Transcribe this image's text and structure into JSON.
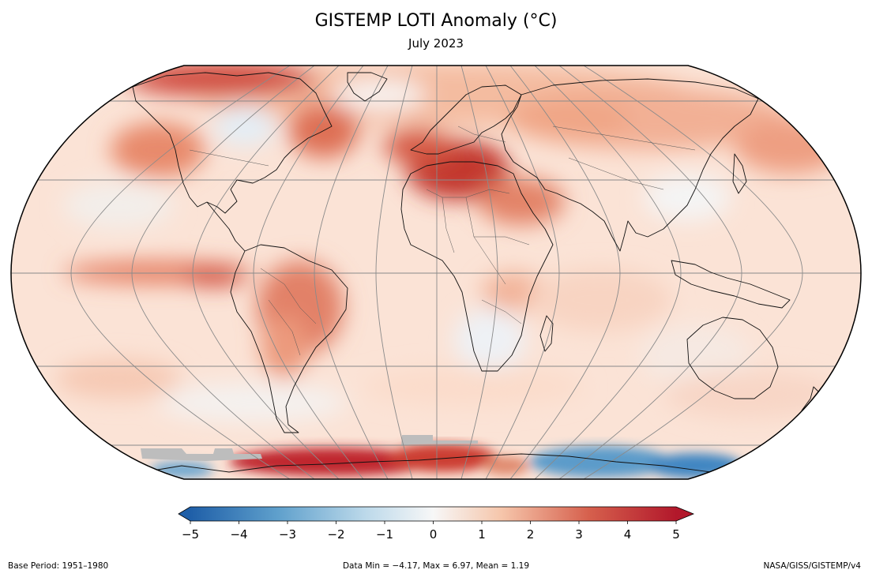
{
  "title": "GISTEMP LOTI Anomaly (°C)",
  "subtitle": "July 2023",
  "colorbar": {
    "min": -5,
    "max": 5,
    "ticks": [
      "−5",
      "−4",
      "−3",
      "−2",
      "−1",
      "0",
      "1",
      "2",
      "3",
      "4",
      "5"
    ],
    "colors": {
      "cold_dark": "#1f5fa8",
      "cold": "#5fa0cc",
      "cool": "#bcd9ea",
      "neutral": "#f7f7f7",
      "warm": "#f6c6ab",
      "hot": "#d6604d",
      "hot_dark": "#b2182b"
    }
  },
  "map": {
    "projection": "Robinson",
    "missing_color": "#bdbdbd",
    "ocean_base": "#fbe2d4"
  },
  "footer": {
    "base_period": "Base Period: 1951–1980",
    "stats": "Data Min = −4.17, Max = 6.97, Mean = 1.19",
    "source": "NASA/GISS/GISTEMP/v4"
  }
}
